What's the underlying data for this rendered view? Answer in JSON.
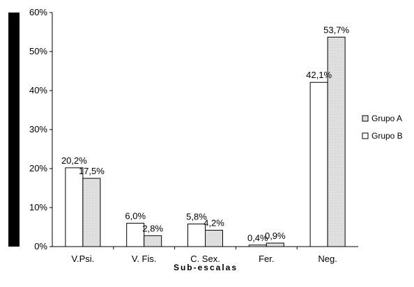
{
  "chart_data": {
    "type": "bar",
    "title": "",
    "xlabel": "Sub-escalas",
    "ylabel": "",
    "categories": [
      "V.Psi.",
      "V. Fis.",
      "C. Sex.",
      "Fer.",
      "Neg."
    ],
    "ylim": [
      0,
      60
    ],
    "yticks": [
      0,
      10,
      20,
      30,
      40,
      50,
      60
    ],
    "ytick_labels": [
      "0%",
      "10%",
      "20%",
      "30%",
      "40%",
      "50%",
      "60%"
    ],
    "grid": false,
    "legend_position": "right",
    "series": [
      {
        "name": "Grupo B",
        "fill": "#ffffff",
        "values": [
          20.2,
          6.0,
          5.8,
          0.4,
          42.1
        ],
        "labels": [
          "20,2%",
          "6,0%",
          "5,8%",
          "0,4%",
          "42,1%"
        ]
      },
      {
        "name": "Grupo A",
        "fill": "#dcdcdc",
        "values": [
          17.5,
          2.8,
          4.2,
          0.9,
          53.7
        ],
        "labels": [
          "17,5%",
          "2,8%",
          "4,2%",
          "0,9%",
          "53,7%"
        ]
      }
    ]
  },
  "legend": {
    "items": [
      {
        "label": "Grupo A",
        "swatch": "dotted"
      },
      {
        "label": "Grupo B",
        "swatch": "white"
      }
    ]
  },
  "colors": {
    "left_band": "#000000",
    "axis": "#000000",
    "bar_outline": "#000000"
  }
}
